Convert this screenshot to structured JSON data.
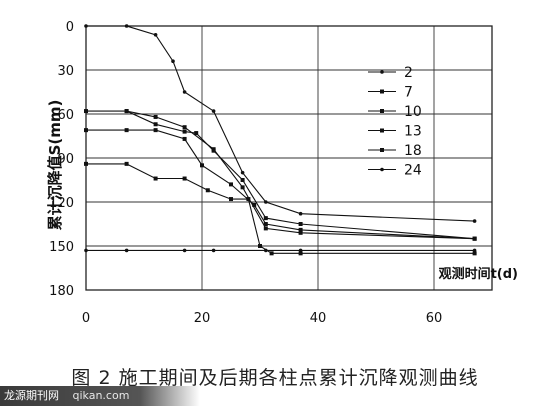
{
  "chart_data": {
    "type": "line",
    "title": "",
    "xlabel": "观测时间t(d)",
    "ylabel": "累计沉降值S(mm)",
    "xlim": [
      0,
      70
    ],
    "ylim": [
      0,
      180
    ],
    "y_inverted": true,
    "xticks": [
      0,
      20,
      40,
      60
    ],
    "yticks": [
      0,
      30,
      60,
      90,
      120,
      150,
      180
    ],
    "grid": true,
    "legend_position": "right",
    "series": [
      {
        "name": "2",
        "marker": "circle",
        "x": [
          0,
          7,
          12,
          15,
          17,
          22,
          27,
          31,
          37,
          67
        ],
        "y": [
          0,
          0,
          6,
          24,
          45,
          58,
          100,
          120,
          128,
          133
        ]
      },
      {
        "name": "7",
        "marker": "square",
        "x": [
          7,
          12,
          17,
          22,
          27,
          31,
          37,
          67
        ],
        "y": [
          58,
          62,
          69,
          84,
          110,
          138,
          141,
          145
        ]
      },
      {
        "name": "10",
        "marker": "square",
        "x": [
          0,
          7,
          12,
          17,
          19,
          22,
          27,
          31,
          37,
          67
        ],
        "y": [
          58,
          58,
          67,
          72,
          73,
          85,
          105,
          131,
          135,
          145
        ]
      },
      {
        "name": "13",
        "marker": "square",
        "x": [
          0,
          7,
          12,
          17,
          20,
          25,
          29,
          31,
          37,
          67
        ],
        "y": [
          71,
          71,
          71,
          77,
          95,
          108,
          122,
          135,
          139,
          145
        ]
      },
      {
        "name": "18",
        "marker": "square",
        "x": [
          0,
          7,
          12,
          17,
          21,
          25,
          28,
          30,
          32,
          37,
          67
        ],
        "y": [
          94,
          94,
          104,
          104,
          112,
          118,
          118,
          150,
          155,
          155,
          155
        ]
      },
      {
        "name": "24",
        "marker": "circle",
        "x": [
          0,
          7,
          17,
          22,
          31,
          37,
          67
        ],
        "y": [
          153,
          153,
          153,
          153,
          153,
          153,
          153
        ]
      }
    ]
  },
  "caption": "图 2   施工期间及后期各柱点累计沉降观测曲线",
  "watermark": {
    "brand": "龙源期刊网",
    "site": "qikan.com"
  }
}
